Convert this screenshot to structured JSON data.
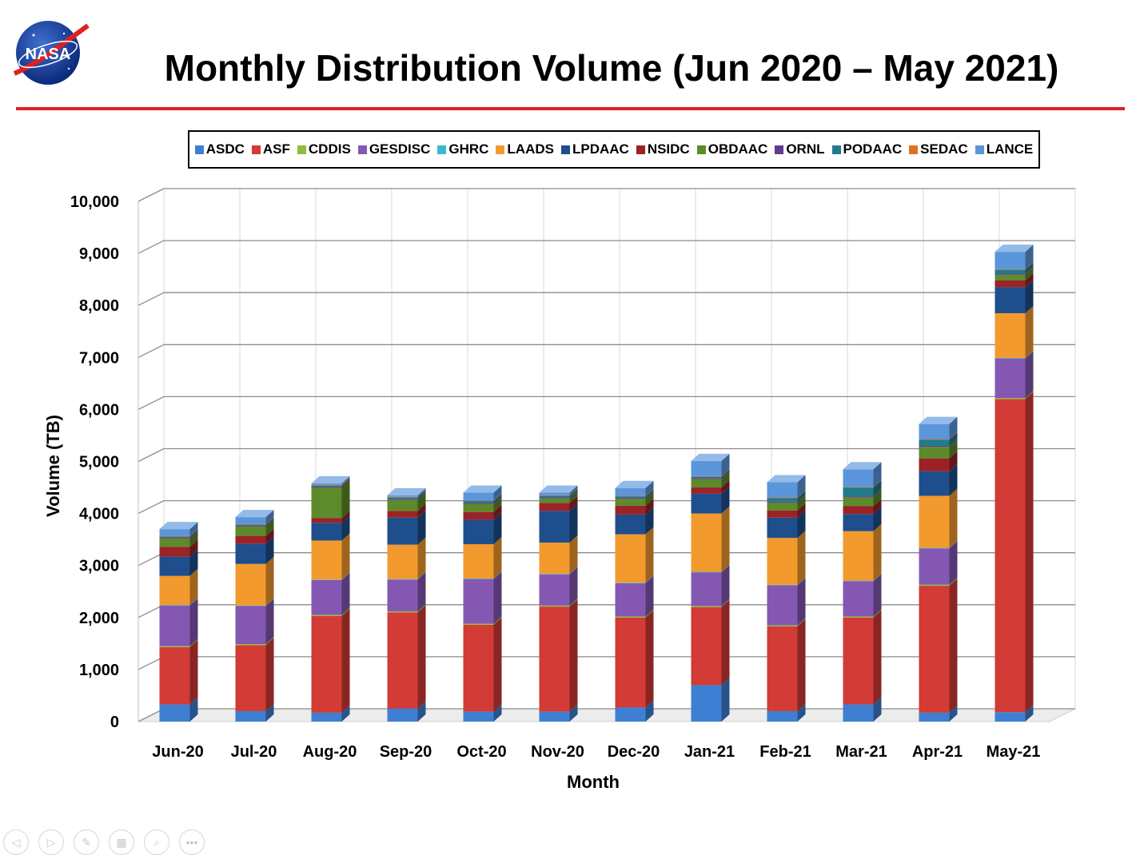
{
  "slide": {
    "title": "Monthly Distribution Volume (Jun 2020 – May 2021)",
    "logo_text": "NASA"
  },
  "colors": {
    "title_rule": "#e02020",
    "series": {
      "ASDC": "#3e7fd4",
      "ASF": "#d23b36",
      "CDDIS": "#8fbd3c",
      "GESDISC": "#8458b2",
      "GHRC": "#3cb7cf",
      "LAADS": "#f39a2e",
      "LPDAAC": "#1f4e8c",
      "NSIDC": "#9b2226",
      "OBDAAC": "#5d8a2a",
      "ORNL": "#5e3d8f",
      "PODAAC": "#237a8a",
      "SEDAC": "#e0721f",
      "LANCE": "#5b95dc"
    }
  },
  "controls": [
    {
      "name": "previous-slide-icon",
      "glyph": "◁"
    },
    {
      "name": "next-slide-icon",
      "glyph": "▷"
    },
    {
      "name": "pen-icon",
      "glyph": "✎"
    },
    {
      "name": "slides-grid-icon",
      "glyph": "▦"
    },
    {
      "name": "zoom-icon",
      "glyph": "⌕"
    },
    {
      "name": "more-options-icon",
      "glyph": "•••"
    }
  ],
  "chart_data": {
    "type": "bar",
    "stacked": true,
    "title": "Monthly Distribution Volume (Jun 2020 – May 2021)",
    "xlabel": "Month",
    "ylabel": "Volume (TB)",
    "ylim": [
      0,
      10000
    ],
    "yticks": [
      0,
      1000,
      2000,
      3000,
      4000,
      5000,
      6000,
      7000,
      8000,
      9000,
      10000
    ],
    "ytick_labels": [
      "0",
      "1,000",
      "2,000",
      "3,000",
      "4,000",
      "5,000",
      "6,000",
      "7,000",
      "8,000",
      "9,000",
      "10,000"
    ],
    "grid": true,
    "legend": "top",
    "categories": [
      "Jun-20",
      "Jul-20",
      "Aug-20",
      "Sep-20",
      "Oct-20",
      "Nov-20",
      "Dec-20",
      "Jan-21",
      "Feb-21",
      "Mar-21",
      "Apr-21",
      "May-21"
    ],
    "series": [
      {
        "name": "ASDC",
        "values": [
          330,
          200,
          170,
          250,
          190,
          190,
          270,
          700,
          200,
          330,
          170,
          180
        ]
      },
      {
        "name": "ASF",
        "values": [
          1100,
          1270,
          1860,
          1850,
          1670,
          2020,
          1730,
          1500,
          1630,
          1670,
          2440,
          6020
        ]
      },
      {
        "name": "CDDIS",
        "values": [
          20,
          20,
          20,
          20,
          20,
          20,
          20,
          20,
          20,
          20,
          20,
          20
        ]
      },
      {
        "name": "GESDISC",
        "values": [
          780,
          730,
          670,
          610,
          860,
          600,
          640,
          650,
          770,
          680,
          700,
          760
        ]
      },
      {
        "name": "GHRC",
        "values": [
          10,
          10,
          10,
          10,
          10,
          10,
          10,
          10,
          10,
          10,
          10,
          10
        ]
      },
      {
        "name": "LAADS",
        "values": [
          560,
          800,
          750,
          660,
          660,
          600,
          930,
          1120,
          900,
          950,
          1000,
          860
        ]
      },
      {
        "name": "LPDAAC",
        "values": [
          370,
          390,
          340,
          520,
          470,
          610,
          380,
          380,
          390,
          330,
          470,
          500
        ]
      },
      {
        "name": "NSIDC",
        "values": [
          190,
          150,
          90,
          130,
          150,
          150,
          170,
          120,
          140,
          150,
          250,
          130
        ]
      },
      {
        "name": "OBDAAC",
        "values": [
          160,
          180,
          590,
          210,
          150,
          90,
          130,
          160,
          150,
          170,
          220,
          110
        ]
      },
      {
        "name": "ORNL",
        "values": [
          20,
          20,
          20,
          20,
          20,
          20,
          20,
          20,
          20,
          20,
          20,
          20
        ]
      },
      {
        "name": "PODAAC",
        "values": [
          20,
          20,
          20,
          30,
          40,
          30,
          30,
          30,
          70,
          170,
          120,
          80
        ]
      },
      {
        "name": "SEDAC",
        "values": [
          10,
          10,
          10,
          10,
          10,
          10,
          10,
          10,
          10,
          10,
          10,
          10
        ]
      },
      {
        "name": "LANCE",
        "values": [
          130,
          130,
          30,
          30,
          150,
          50,
          150,
          290,
          290,
          340,
          290,
          330
        ]
      }
    ]
  }
}
